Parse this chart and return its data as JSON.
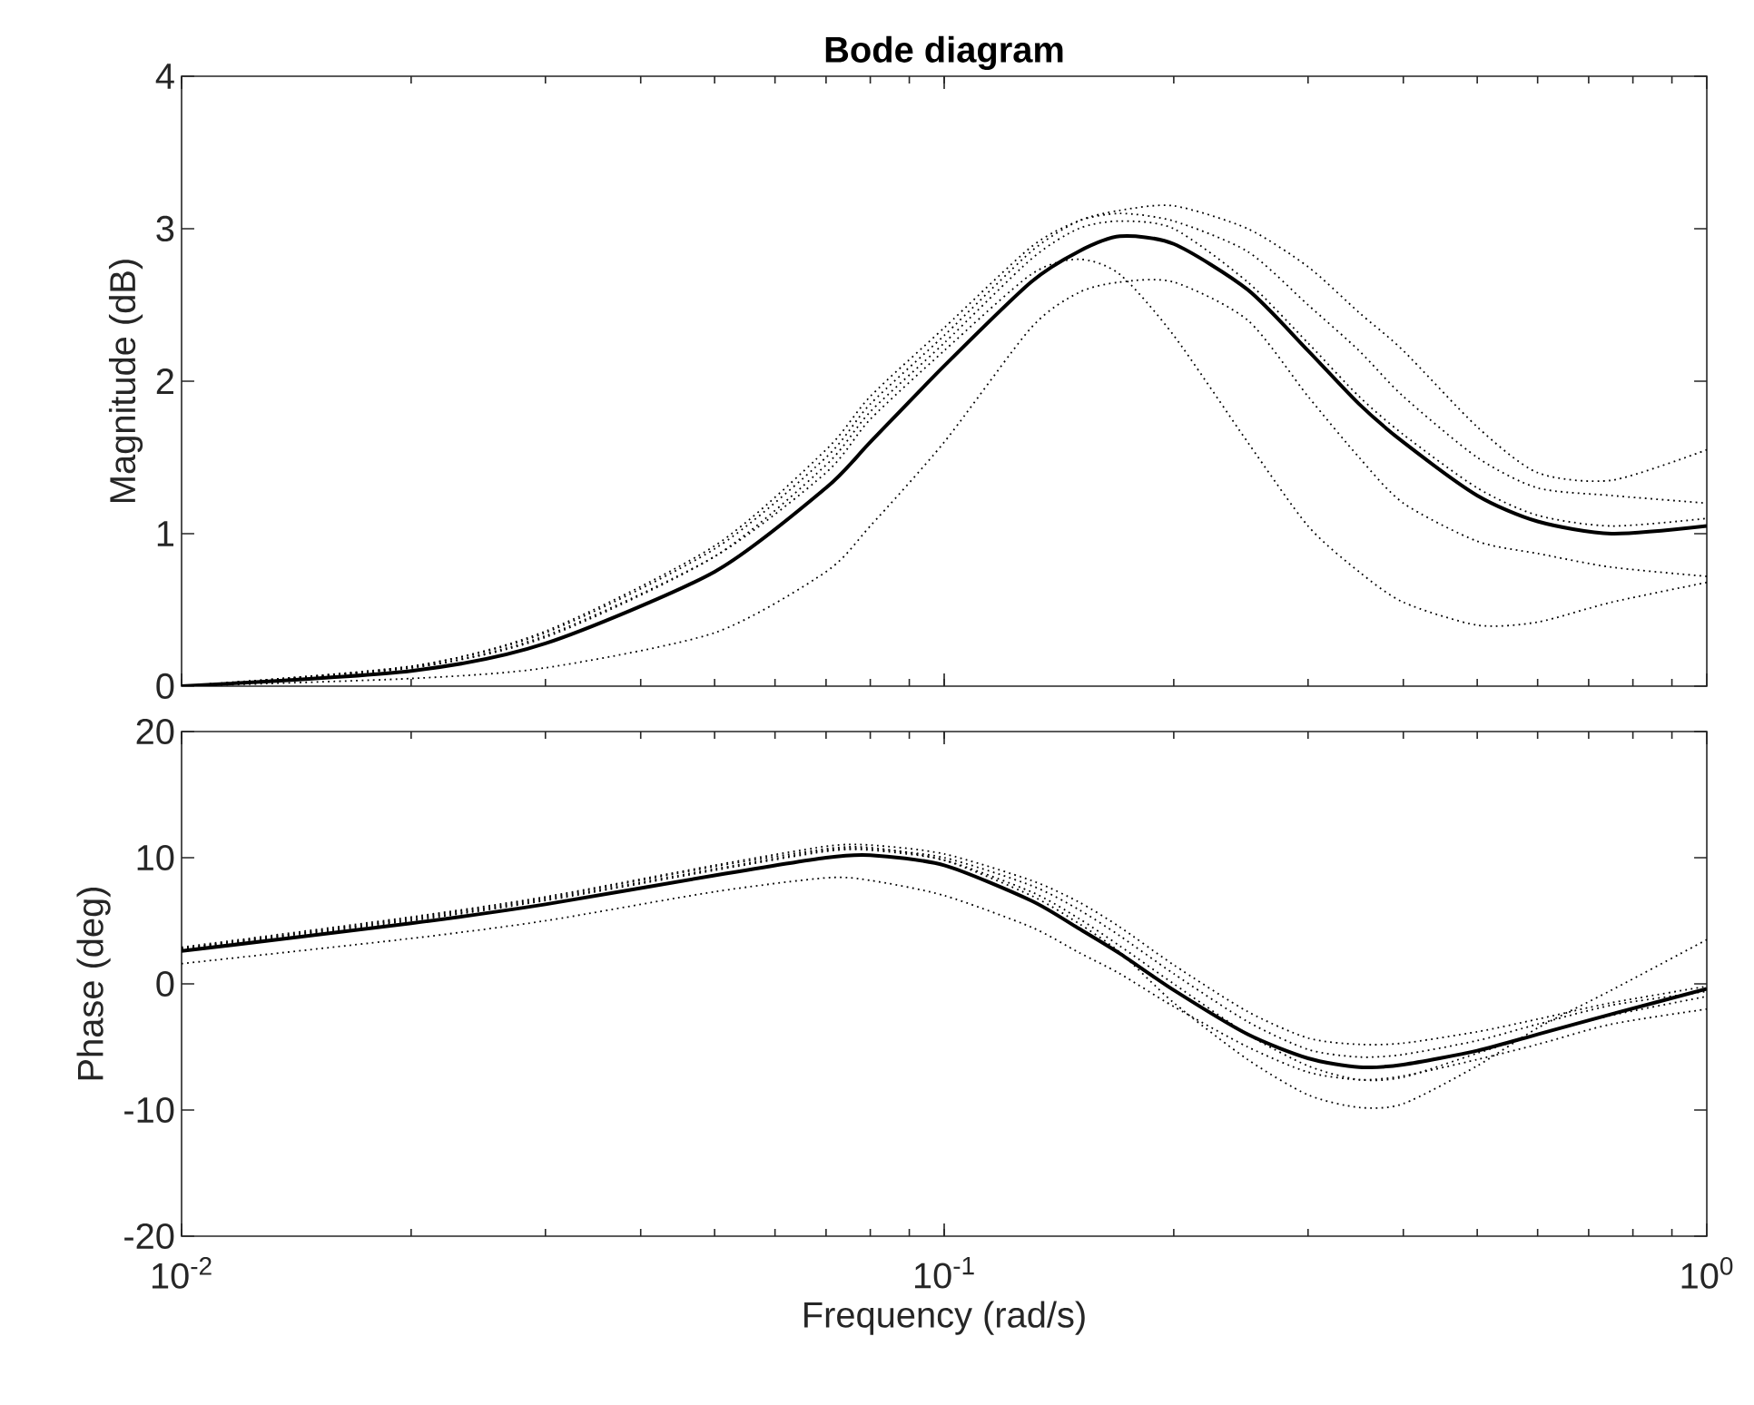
{
  "chart_data": [
    {
      "type": "line",
      "title": "Bode diagram",
      "ylabel": "Magnitude (dB)",
      "log": "x",
      "tick_labels": "y",
      "grid": false,
      "marker": "none",
      "x": [
        0.01,
        0.02,
        0.03,
        0.05,
        0.07,
        0.08,
        0.1,
        0.13,
        0.15,
        0.17,
        0.2,
        0.25,
        0.3,
        0.35,
        0.4,
        0.5,
        0.6,
        0.75,
        1
      ],
      "xlim": [
        0.01,
        1
      ],
      "xticks": [
        {
          "value": 0.01,
          "label": null
        },
        {
          "value": 0.1,
          "label": null
        },
        {
          "value": 1,
          "label": null
        }
      ],
      "ylim": [
        0,
        4
      ],
      "yticks": [
        0,
        1,
        2,
        3,
        4
      ],
      "series": [
        {
          "color": "#000000",
          "line_style": "dotted",
          "values": [
            0,
            0.13,
            0.35,
            0.9,
            1.5,
            1.85,
            2.3,
            2.85,
            3.05,
            3.12,
            3.15,
            3.0,
            2.75,
            2.45,
            2.2,
            1.7,
            1.4,
            1.35,
            1.55
          ]
        },
        {
          "color": "#000000",
          "line_style": "dotted",
          "values": [
            0,
            0.13,
            0.36,
            0.92,
            1.55,
            1.9,
            2.35,
            2.88,
            3.05,
            3.1,
            3.05,
            2.85,
            2.5,
            2.2,
            1.9,
            1.5,
            1.3,
            1.25,
            1.2
          ]
        },
        {
          "color": "#000000",
          "line_style": "dotted",
          "values": [
            0,
            0.12,
            0.33,
            0.85,
            1.4,
            1.75,
            2.2,
            2.7,
            2.8,
            2.7,
            2.3,
            1.6,
            1.05,
            0.75,
            0.55,
            0.4,
            0.42,
            0.55,
            0.68
          ]
        },
        {
          "color": "#000000",
          "line_style": "dotted",
          "values": [
            0,
            0.05,
            0.12,
            0.35,
            0.75,
            1.05,
            1.6,
            2.35,
            2.58,
            2.65,
            2.65,
            2.4,
            1.9,
            1.5,
            1.2,
            0.95,
            0.87,
            0.78,
            0.72
          ]
        },
        {
          "color": "#000000",
          "line_style": "dotted",
          "values": [
            0,
            0.12,
            0.32,
            0.85,
            1.45,
            1.8,
            2.25,
            2.8,
            3.0,
            3.05,
            3.0,
            2.65,
            2.25,
            1.9,
            1.65,
            1.3,
            1.12,
            1.05,
            1.1
          ]
        },
        {
          "color": "#000000",
          "line_style": "solid",
          "values": [
            0,
            0.1,
            0.28,
            0.75,
            1.3,
            1.6,
            2.1,
            2.65,
            2.85,
            2.95,
            2.9,
            2.6,
            2.2,
            1.85,
            1.6,
            1.25,
            1.08,
            1.0,
            1.05
          ]
        }
      ]
    },
    {
      "type": "line",
      "xlabel": "Frequency (rad/s)",
      "ylabel": "Phase (deg)",
      "log": "x",
      "grid": false,
      "marker": "none",
      "x": [
        0.01,
        0.02,
        0.03,
        0.05,
        0.07,
        0.08,
        0.1,
        0.13,
        0.15,
        0.17,
        0.2,
        0.25,
        0.3,
        0.35,
        0.4,
        0.5,
        0.6,
        0.75,
        1
      ],
      "xlim": [
        0.01,
        1
      ],
      "xticks": [
        {
          "value": 0.01,
          "label": "10$^{-2}$"
        },
        {
          "value": 0.1,
          "label": "10$^{-1}$"
        },
        {
          "value": 1,
          "label": "10$^{0}$"
        }
      ],
      "ylim": [
        -20,
        20
      ],
      "yticks": [
        -20,
        -10,
        0,
        10,
        20
      ],
      "series": [
        {
          "color": "#000000",
          "line_style": "dotted",
          "values": [
            1.6,
            3.6,
            5.0,
            7.3,
            8.4,
            8.2,
            7.0,
            4.5,
            2.5,
            0.8,
            -1.8,
            -5.0,
            -7.0,
            -7.6,
            -7.3,
            -6.0,
            -4.8,
            -3.2,
            -2.0
          ]
        },
        {
          "color": "#000000",
          "line_style": "dotted",
          "values": [
            2.8,
            5.2,
            6.8,
            9.3,
            10.7,
            10.8,
            9.8,
            7.0,
            4.8,
            2.5,
            -1.5,
            -6.0,
            -8.8,
            -9.8,
            -9.5,
            -6.5,
            -3.5,
            -0.5,
            3.5
          ]
        },
        {
          "color": "#000000",
          "line_style": "dotted",
          "values": [
            2.9,
            5.3,
            6.9,
            9.4,
            10.9,
            11.0,
            10.3,
            8.2,
            6.5,
            4.5,
            1.5,
            -2.2,
            -4.3,
            -4.8,
            -4.7,
            -3.8,
            -2.8,
            -1.5,
            -0.2
          ]
        },
        {
          "color": "#000000",
          "line_style": "dotted",
          "values": [
            2.7,
            5.0,
            6.6,
            9.0,
            10.5,
            10.6,
            9.8,
            7.3,
            5.2,
            3.0,
            0,
            -4.0,
            -6.5,
            -7.6,
            -7.4,
            -5.5,
            -4.0,
            -2.5,
            -1.0
          ]
        },
        {
          "color": "#000000",
          "line_style": "dotted",
          "values": [
            2.8,
            5.1,
            6.7,
            9.1,
            10.6,
            10.7,
            10.0,
            7.8,
            5.9,
            3.8,
            0.8,
            -3.0,
            -5.2,
            -5.8,
            -5.6,
            -4.5,
            -3.2,
            -1.7,
            -0.6
          ]
        },
        {
          "color": "#000000",
          "line_style": "solid",
          "values": [
            2.6,
            4.8,
            6.3,
            8.6,
            10.0,
            10.2,
            9.4,
            6.6,
            4.4,
            2.4,
            -0.5,
            -4.0,
            -5.9,
            -6.6,
            -6.4,
            -5.3,
            -4.0,
            -2.4,
            -0.4
          ]
        }
      ]
    }
  ]
}
